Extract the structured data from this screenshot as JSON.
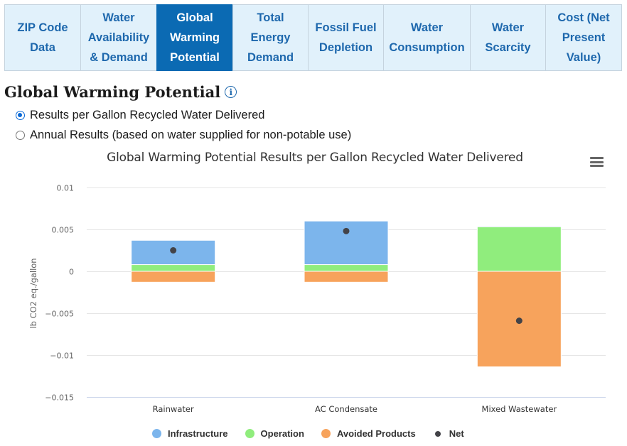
{
  "tabs": [
    {
      "label": "ZIP Code\nData",
      "active": false
    },
    {
      "label": "Water\nAvailability\n& Demand",
      "active": false
    },
    {
      "label": "Global\nWarming\nPotential",
      "active": true
    },
    {
      "label": "Total\nEnergy\nDemand",
      "active": false
    },
    {
      "label": "Fossil Fuel\nDepletion",
      "active": false
    },
    {
      "label": "Water\nConsumption",
      "active": false
    },
    {
      "label": "Water\nScarcity",
      "active": false
    },
    {
      "label": "Cost (Net\nPresent\nValue)",
      "active": false
    }
  ],
  "heading": "Global Warming Potential",
  "info_icon_glyph": "i",
  "options": [
    {
      "label": "Results per Gallon Recycled Water Delivered",
      "checked": true
    },
    {
      "label": "Annual Results (based on water supplied for non-potable use)",
      "checked": false
    }
  ],
  "colors": {
    "accent": "#0b6ab3",
    "tab_bg": "#e1f1fb",
    "infrastructure": "#7cb5ec",
    "operation": "#90ed7d",
    "avoided": "#f7a35c",
    "net": "#434348"
  },
  "chart_data": {
    "type": "bar",
    "stacked": true,
    "title": "Global Warming Potential Results per Gallon Recycled Water Delivered",
    "xlabel": "",
    "ylabel": "lb CO2 eq./gallon",
    "ylim": [
      -0.015,
      0.01
    ],
    "yticks": [
      0.01,
      0.005,
      0,
      -0.005,
      -0.01,
      -0.015
    ],
    "ytick_labels": [
      "0.01",
      "0.005",
      "0",
      "−0.005",
      "−0.01",
      "−0.015"
    ],
    "grid": true,
    "legend_position": "bottom",
    "categories": [
      "Rainwater",
      "AC Condensate",
      "Mixed Wastewater"
    ],
    "series": [
      {
        "name": "Infrastructure",
        "values": [
          0.0029,
          0.0052,
          0.0001
        ]
      },
      {
        "name": "Operation",
        "values": [
          0.0008,
          0.0008,
          0.0053
        ]
      },
      {
        "name": "Avoided Products",
        "values": [
          -0.0013,
          -0.0013,
          -0.0114
        ]
      }
    ],
    "net": {
      "name": "Net",
      "values": [
        0.0025,
        0.0048,
        -0.0059
      ]
    }
  }
}
